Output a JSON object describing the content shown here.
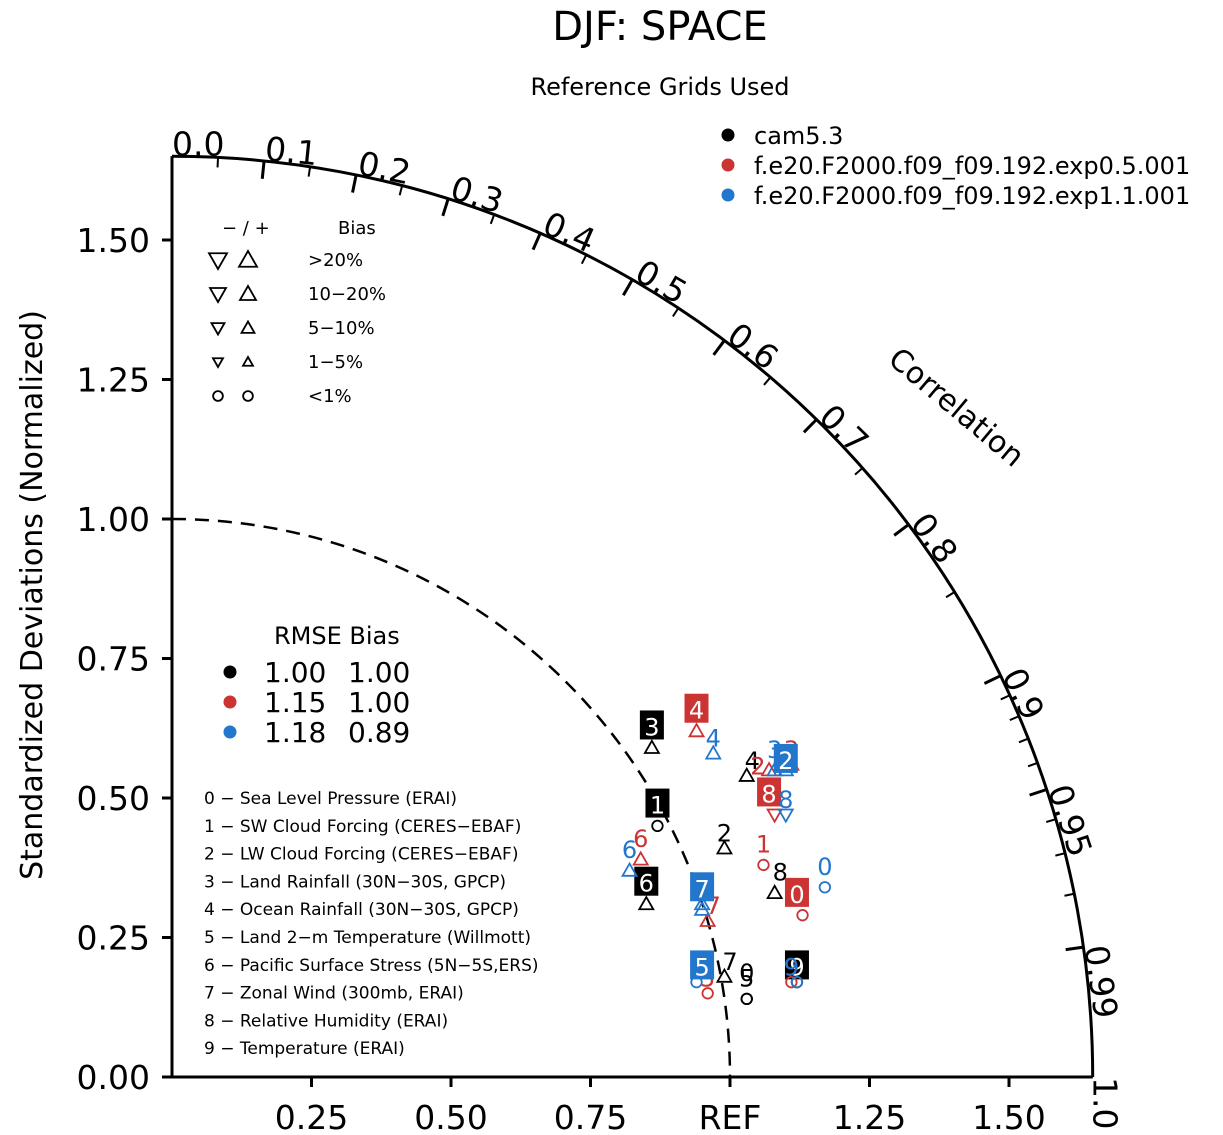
{
  "chart_data": {
    "type": "taylor",
    "title": "DJF: SPACE",
    "subtitle": "Reference Grids Used",
    "ylabel": "Standardized Deviations (Normalized)",
    "xlabel": "REF",
    "std_range": [
      0,
      1.65
    ],
    "y_ticks": [
      {
        "v": 0.0,
        "label": "0.00"
      },
      {
        "v": 0.25,
        "label": "0.25"
      },
      {
        "v": 0.5,
        "label": "0.50"
      },
      {
        "v": 0.75,
        "label": "0.75"
      },
      {
        "v": 1.0,
        "label": "1.00"
      },
      {
        "v": 1.25,
        "label": "1.25"
      },
      {
        "v": 1.5,
        "label": "1.50"
      }
    ],
    "x_ticks": [
      {
        "v": 0.25,
        "label": "0.25"
      },
      {
        "v": 0.5,
        "label": "0.50"
      },
      {
        "v": 0.75,
        "label": "0.75"
      },
      {
        "v": 1.0,
        "label": "REF"
      },
      {
        "v": 1.25,
        "label": "1.25"
      },
      {
        "v": 1.5,
        "label": "1.50"
      }
    ],
    "correlation_label": "Correlation",
    "correlation_ticks": [
      {
        "r": 0.0,
        "label": "0.0"
      },
      {
        "r": 0.1,
        "label": "0.1"
      },
      {
        "r": 0.2,
        "label": "0.2"
      },
      {
        "r": 0.3,
        "label": "0.3"
      },
      {
        "r": 0.4,
        "label": "0.4"
      },
      {
        "r": 0.5,
        "label": "0.5"
      },
      {
        "r": 0.6,
        "label": "0.6"
      },
      {
        "r": 0.7,
        "label": "0.7"
      },
      {
        "r": 0.8,
        "label": "0.8"
      },
      {
        "r": 0.9,
        "label": "0.9"
      },
      {
        "r": 0.95,
        "label": "0.95"
      },
      {
        "r": 0.99,
        "label": "0.99"
      },
      {
        "r": 1.0,
        "label": "1.0"
      }
    ],
    "minor_correlation_ticks": [
      0.05,
      0.15,
      0.25,
      0.35,
      0.45,
      0.55,
      0.65,
      0.75,
      0.85,
      0.91,
      0.92,
      0.93,
      0.94,
      0.96,
      0.97,
      0.98
    ],
    "series": [
      {
        "name": "cam5.3",
        "color": "#000000",
        "rmse": "1.00",
        "bias": "1.00"
      },
      {
        "name": "f.e20.F2000.f09_f09.192.exp0.5.001",
        "color": "#cc3333",
        "rmse": "1.15",
        "bias": "1.00"
      },
      {
        "name": "f.e20.F2000.f09_f09.192.exp1.1.001",
        "color": "#2277cc",
        "rmse": "1.18",
        "bias": "0.89"
      }
    ],
    "stats_header": "RMSE Bias",
    "bias_legend": {
      "header_sign": "− / +",
      "header_bias": "Bias",
      "rows": [
        {
          "label": ">20%",
          "size": 9
        },
        {
          "label": "10−20%",
          "size": 8
        },
        {
          "label": "5−10%",
          "size": 6.5
        },
        {
          "label": "1−5%",
          "size": 5
        },
        {
          "label": "<1%",
          "size": 5
        }
      ]
    },
    "variables": [
      "0 − Sea Level Pressure (ERAI)",
      "1 − SW Cloud Forcing (CERES−EBAF)",
      "2 − LW Cloud Forcing (CERES−EBAF)",
      "3 − Land Rainfall (30N−30S, GPCP)",
      "4 − Ocean Rainfall (30N−30S, GPCP)",
      "5 − Land 2−m Temperature (Willmott)",
      "6 − Pacific Surface Stress (5N−5S,ERS)",
      "7 − Zonal Wind (300mb, ERAI)",
      "8 − Relative Humidity (ERAI)",
      "9 − Temperature (ERAI)"
    ],
    "points": [
      {
        "series": 0,
        "id": "0",
        "x": 1.03,
        "y": 0.19,
        "bias": "circle",
        "marker_x": 1.03,
        "marker_y": 0.14
      },
      {
        "series": 0,
        "id": "1",
        "x": 0.87,
        "y": 0.49,
        "bias": "circle",
        "marker_x": 0.87,
        "marker_y": 0.45
      },
      {
        "series": 0,
        "id": "2",
        "x": 0.99,
        "y": 0.44,
        "bias": "up",
        "marker_x": 0.99,
        "marker_y": 0.41
      },
      {
        "series": 0,
        "id": "3",
        "x": 0.86,
        "y": 0.63,
        "bias": "up",
        "marker_x": 0.86,
        "marker_y": 0.59
      },
      {
        "series": 0,
        "id": "4",
        "x": 1.04,
        "y": 0.57,
        "bias": "up",
        "marker_x": 1.03,
        "marker_y": 0.54
      },
      {
        "series": 0,
        "id": "5",
        "x": 1.03,
        "y": 0.18,
        "bias": "circle",
        "marker_x": 1.03,
        "marker_y": 0.14
      },
      {
        "series": 0,
        "id": "6",
        "x": 0.85,
        "y": 0.35,
        "bias": "up",
        "marker_x": 0.85,
        "marker_y": 0.31
      },
      {
        "series": 0,
        "id": "7",
        "x": 1.0,
        "y": 0.21,
        "bias": "up",
        "marker_x": 0.99,
        "marker_y": 0.18
      },
      {
        "series": 0,
        "id": "8",
        "x": 1.09,
        "y": 0.37,
        "bias": "up",
        "marker_x": 1.08,
        "marker_y": 0.33
      },
      {
        "series": 0,
        "id": "9",
        "x": 1.12,
        "y": 0.2,
        "bias": "circle",
        "marker_x": 1.12,
        "marker_y": 0.17
      },
      {
        "series": 1,
        "id": "0",
        "x": 1.12,
        "y": 0.33,
        "bias": "circle",
        "marker_x": 1.13,
        "marker_y": 0.29
      },
      {
        "series": 1,
        "id": "1",
        "x": 1.06,
        "y": 0.42,
        "bias": "circle",
        "marker_x": 1.06,
        "marker_y": 0.38
      },
      {
        "series": 1,
        "id": "2",
        "x": 1.05,
        "y": 0.56,
        "bias": "up",
        "marker_x": 1.07,
        "marker_y": 0.55
      },
      {
        "series": 1,
        "id": "3",
        "x": 1.11,
        "y": 0.59,
        "bias": "up",
        "marker_x": 1.11,
        "marker_y": 0.56
      },
      {
        "series": 1,
        "id": "4",
        "x": 0.94,
        "y": 0.66,
        "bias": "up",
        "marker_x": 0.94,
        "marker_y": 0.62
      },
      {
        "series": 1,
        "id": "5",
        "x": 0.96,
        "y": 0.18,
        "bias": "circle",
        "marker_x": 0.96,
        "marker_y": 0.15
      },
      {
        "series": 1,
        "id": "6",
        "x": 0.84,
        "y": 0.43,
        "bias": "up",
        "marker_x": 0.84,
        "marker_y": 0.39
      },
      {
        "series": 1,
        "id": "7",
        "x": 0.97,
        "y": 0.31,
        "bias": "up",
        "marker_x": 0.96,
        "marker_y": 0.28
      },
      {
        "series": 1,
        "id": "8",
        "x": 1.07,
        "y": 0.51,
        "bias": "down",
        "marker_x": 1.08,
        "marker_y": 0.47
      },
      {
        "series": 1,
        "id": "9",
        "x": 1.11,
        "y": 0.2,
        "bias": "circle",
        "marker_x": 1.11,
        "marker_y": 0.17
      },
      {
        "series": 2,
        "id": "0",
        "x": 1.17,
        "y": 0.38,
        "bias": "circle",
        "marker_x": 1.17,
        "marker_y": 0.34
      },
      {
        "series": 2,
        "id": "1",
        "x": 0.95,
        "y": 0.34,
        "bias": "up",
        "marker_x": 0.95,
        "marker_y": 0.3
      },
      {
        "series": 2,
        "id": "2",
        "x": 1.1,
        "y": 0.57,
        "bias": "up",
        "marker_x": 1.1,
        "marker_y": 0.55
      },
      {
        "series": 2,
        "id": "3",
        "x": 1.08,
        "y": 0.59,
        "bias": "up",
        "marker_x": 1.08,
        "marker_y": 0.55
      },
      {
        "series": 2,
        "id": "4",
        "x": 0.97,
        "y": 0.61,
        "bias": "up",
        "marker_x": 0.97,
        "marker_y": 0.58
      },
      {
        "series": 2,
        "id": "5",
        "x": 0.95,
        "y": 0.2,
        "bias": "circle",
        "marker_x": 0.94,
        "marker_y": 0.17
      },
      {
        "series": 2,
        "id": "6",
        "x": 0.82,
        "y": 0.41,
        "bias": "up",
        "marker_x": 0.82,
        "marker_y": 0.37
      },
      {
        "series": 2,
        "id": "7",
        "x": 0.95,
        "y": 0.34,
        "bias": "up",
        "marker_x": 0.95,
        "marker_y": 0.31
      },
      {
        "series": 2,
        "id": "8",
        "x": 1.1,
        "y": 0.5,
        "bias": "down",
        "marker_x": 1.1,
        "marker_y": 0.47
      },
      {
        "series": 2,
        "id": "9",
        "x": 1.11,
        "y": 0.2,
        "bias": "circle",
        "marker_x": 1.12,
        "marker_y": 0.17
      }
    ],
    "boxed_points": [
      {
        "series": 0,
        "id": "1"
      },
      {
        "series": 0,
        "id": "3"
      },
      {
        "series": 0,
        "id": "6"
      },
      {
        "series": 0,
        "id": "9"
      },
      {
        "series": 1,
        "id": "0"
      },
      {
        "series": 1,
        "id": "4"
      },
      {
        "series": 1,
        "id": "8"
      },
      {
        "series": 2,
        "id": "2"
      },
      {
        "series": 2,
        "id": "5"
      },
      {
        "series": 2,
        "id": "7"
      }
    ]
  }
}
